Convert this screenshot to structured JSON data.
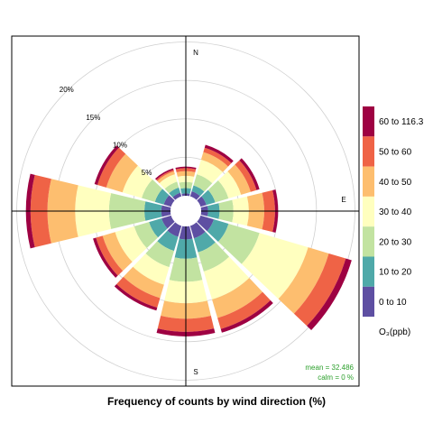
{
  "chart_data": {
    "type": "polar-bar",
    "title": "Frequency of counts by wind direction (%)",
    "directions_deg": [
      0,
      30,
      60,
      90,
      120,
      150,
      180,
      210,
      240,
      270,
      300,
      330
    ],
    "compass_labels": [
      {
        "label": "N",
        "angle_deg": 0
      },
      {
        "label": "E",
        "angle_deg": 90
      },
      {
        "label": "S",
        "angle_deg": 180
      }
    ],
    "ring_values": [
      5,
      10,
      15,
      20
    ],
    "ring_labels": [
      "5%",
      "10%",
      "15%",
      "20%"
    ],
    "radial_max": 21,
    "legend_title": "O₃(ppb)",
    "bins": [
      {
        "label": "0 to 10",
        "color": "#5e4fa2"
      },
      {
        "label": "10 to 20",
        "color": "#4fa9a9"
      },
      {
        "label": "20 to 30",
        "color": "#c2e3a1"
      },
      {
        "label": "30 to 40",
        "color": "#ffffbf"
      },
      {
        "label": "40 to 50",
        "color": "#fdbe6f"
      },
      {
        "label": "50 to 60",
        "color": "#ef6346"
      },
      {
        "label": "60 to 116.3",
        "color": "#9e0142"
      }
    ],
    "series_cumulative_pct": [
      [
        0.3,
        1.0,
        1.8,
        2.6,
        3.2,
        3.6,
        3.8
      ],
      [
        0.7,
        1.5,
        3.0,
        5.0,
        6.0,
        6.6,
        7.0
      ],
      [
        0.8,
        2.0,
        3.8,
        5.5,
        6.8,
        7.6,
        8.0
      ],
      [
        0.9,
        2.4,
        4.2,
        6.2,
        8.2,
        9.6,
        10.0
      ],
      [
        1.8,
        3.8,
        8.0,
        14.6,
        17.4,
        19.7,
        20.5
      ],
      [
        1.7,
        3.6,
        6.2,
        10.0,
        12.5,
        14.0,
        14.5
      ],
      [
        1.7,
        4.2,
        7.2,
        10.0,
        12.0,
        13.7,
        14.3
      ],
      [
        1.5,
        3.4,
        5.6,
        8.0,
        9.8,
        11.1,
        11.5
      ],
      [
        1.3,
        3.0,
        5.0,
        7.6,
        9.3,
        10.2,
        10.6
      ],
      [
        1.2,
        3.4,
        8.0,
        12.4,
        16.0,
        18.2,
        18.8
      ],
      [
        1.0,
        2.2,
        4.0,
        6.6,
        8.8,
        10.0,
        10.4
      ],
      [
        0.5,
        1.2,
        2.0,
        3.0,
        3.4,
        3.6,
        3.8
      ]
    ],
    "mean_label": "mean = 32.486",
    "calm_label": "calm = 0 %"
  }
}
